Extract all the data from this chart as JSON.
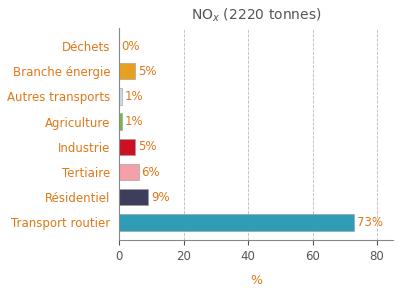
{
  "categories": [
    "Transport routier",
    "Résidentiel",
    "Tertiaire",
    "Industrie",
    "Agriculture",
    "Autres transports",
    "Branche énergie",
    "Déchets"
  ],
  "values": [
    73,
    9,
    6,
    5,
    1,
    1,
    5,
    0
  ],
  "colors": [
    "#2e9db5",
    "#3d3d5c",
    "#f4a0a8",
    "#cc1122",
    "#7ab648",
    "#c8dde8",
    "#e8a020",
    "#e8e8e8"
  ],
  "labels": [
    "73%",
    "9%",
    "6%",
    "5%",
    "1%",
    "1%",
    "5%",
    "0%"
  ],
  "title_main": "NO",
  "title_sub": "x",
  "title_suffix": " (2220 tonnes)",
  "xlabel": "%",
  "xlim": [
    0,
    85
  ],
  "xticks": [
    0,
    20,
    40,
    60,
    80
  ],
  "background_color": "#ffffff",
  "grid_color": "#bbbbbb",
  "label_color": "#e07818",
  "yticklabel_color": "#e07818",
  "title_color": "#555555"
}
